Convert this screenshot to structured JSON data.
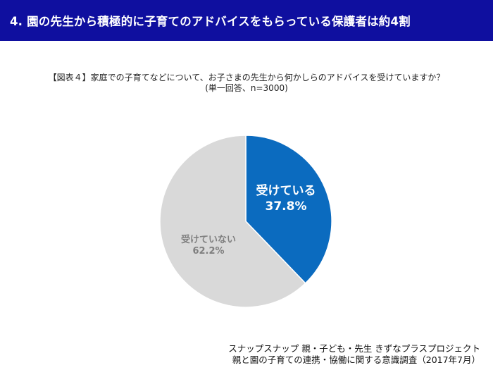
{
  "header": {
    "title": "4.  園の先生から積極的に子育てのアドバイスをもらっている保護者は約4割"
  },
  "chart_data": {
    "type": "pie",
    "title": "【図表４】家庭での子育てなどについて、お子さまの先生から何かしらのアドバイスを受けていますか？",
    "subtitle": "(単一回答、n=3000)",
    "slices": [
      {
        "label": "受けている",
        "value": 37.8,
        "value_label": "37.8%",
        "color": "#0B6BBF",
        "text_color": "#FFFFFF"
      },
      {
        "label": "受けていない",
        "value": 62.2,
        "value_label": "62.2%",
        "color": "#D9D9D9",
        "text_color": "#7F7F7F"
      }
    ]
  },
  "source": {
    "line1": "スナップスナップ 親・子ども・先生 きずなプラスプロジェクト",
    "line2": "親と園の子育ての連携・協働に関する意識調査（2017年7月）"
  }
}
